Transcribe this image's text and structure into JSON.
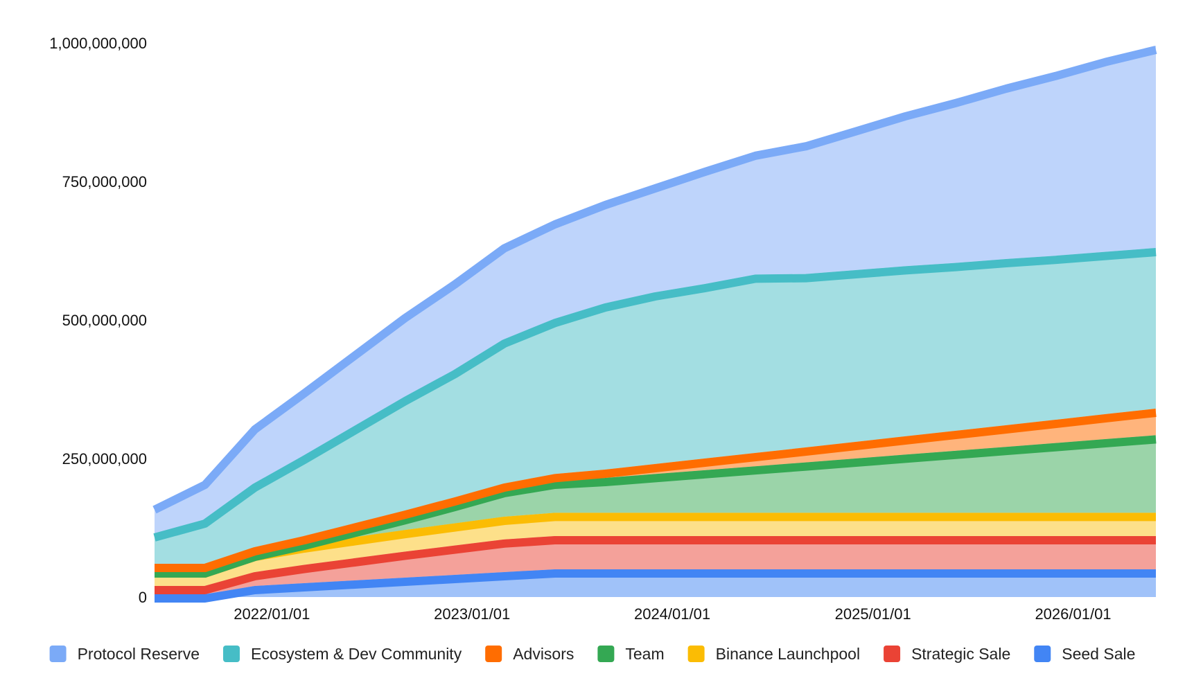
{
  "chart_data": {
    "type": "area",
    "stacked": true,
    "title": "",
    "xlabel": "",
    "ylabel": "",
    "ylim": [
      0,
      1000000000
    ],
    "y_ticks": [
      {
        "value": 0,
        "label": "0"
      },
      {
        "value": 250000000,
        "label": "250,000,000"
      },
      {
        "value": 500000000,
        "label": "500,000,000"
      },
      {
        "value": 750000000,
        "label": "750,000,000"
      },
      {
        "value": 1000000000,
        "label": "1,000,000,000"
      }
    ],
    "x_ticks": [
      {
        "value": "2022-01-01",
        "label": "2022/01/01"
      },
      {
        "value": "2023-01-01",
        "label": "2023/01/01"
      },
      {
        "value": "2024-01-01",
        "label": "2024/01/01"
      },
      {
        "value": "2025-01-01",
        "label": "2025/01/01"
      },
      {
        "value": "2026-01-01",
        "label": "2026/01/01"
      }
    ],
    "x_range": [
      "2021-06-01",
      "2026-06-01"
    ],
    "x": [
      "2021-06-01",
      "2021-09-01",
      "2021-12-01",
      "2022-03-01",
      "2022-06-01",
      "2022-09-01",
      "2022-12-01",
      "2023-03-01",
      "2023-06-01",
      "2023-09-01",
      "2023-12-01",
      "2024-03-01",
      "2024-06-01",
      "2024-09-01",
      "2024-12-01",
      "2025-03-01",
      "2025-06-01",
      "2025-09-01",
      "2025-12-01",
      "2026-03-01",
      "2026-06-01"
    ],
    "legend_position": "bottom",
    "grid": false,
    "series": [
      {
        "name": "Seed Sale",
        "color": "#4285f4",
        "fill": "#a0c2f9",
        "values": [
          5000000,
          5000000,
          20000000,
          25000000,
          30000000,
          35000000,
          40000000,
          45000000,
          50000000,
          50000000,
          50000000,
          50000000,
          50000000,
          50000000,
          50000000,
          50000000,
          50000000,
          50000000,
          50000000,
          50000000,
          50000000
        ]
      },
      {
        "name": "Strategic Sale",
        "color": "#ea4335",
        "fill": "#f4a19a",
        "values": [
          15000000,
          15000000,
          25000000,
          33000000,
          40000000,
          47000000,
          53000000,
          59000000,
          60000000,
          60000000,
          60000000,
          60000000,
          60000000,
          60000000,
          60000000,
          60000000,
          60000000,
          60000000,
          60000000,
          60000000,
          60000000
        ]
      },
      {
        "name": "Binance Launchpool",
        "color": "#fbbc04",
        "fill": "#fde08a",
        "values": [
          30000000,
          30000000,
          35000000,
          37000000,
          38000000,
          39000000,
          40000000,
          41000000,
          42000000,
          42000000,
          42000000,
          42000000,
          42000000,
          42000000,
          42000000,
          42000000,
          42000000,
          42000000,
          42000000,
          42000000,
          42000000
        ]
      },
      {
        "name": "Team",
        "color": "#34a853",
        "fill": "#9bd4a9",
        "values": [
          0,
          0,
          0,
          5000000,
          15000000,
          25000000,
          37000000,
          50000000,
          58000000,
          63000000,
          70000000,
          77000000,
          84000000,
          91000000,
          98000000,
          105000000,
          112000000,
          119000000,
          126000000,
          133000000,
          140000000
        ]
      },
      {
        "name": "Advisors",
        "color": "#ff6d01",
        "fill": "#ffb47c",
        "values": [
          10000000,
          10000000,
          10000000,
          10000000,
          10000000,
          10000000,
          10000000,
          10000000,
          12000000,
          15000000,
          18000000,
          21000000,
          24000000,
          27000000,
          30000000,
          33000000,
          36000000,
          39000000,
          42000000,
          45000000,
          48000000
        ]
      },
      {
        "name": "Ecosystem & Dev Community",
        "color": "#46bdc6",
        "fill": "#a3dee2",
        "values": [
          55000000,
          80000000,
          115000000,
          145000000,
          175000000,
          205000000,
          230000000,
          260000000,
          280000000,
          300000000,
          310000000,
          315000000,
          322000000,
          313000000,
          310000000,
          307000000,
          303000000,
          300000000,
          296000000,
          293000000,
          290000000
        ]
      },
      {
        "name": "Protocol Reserve",
        "color": "#7baaf7",
        "fill": "#bed4fb",
        "values": [
          50000000,
          70000000,
          105000000,
          120000000,
          135000000,
          150000000,
          162000000,
          172000000,
          178000000,
          185000000,
          195000000,
          210000000,
          222000000,
          238000000,
          258000000,
          278000000,
          296000000,
          315000000,
          332000000,
          350000000,
          365000000
        ]
      }
    ]
  }
}
